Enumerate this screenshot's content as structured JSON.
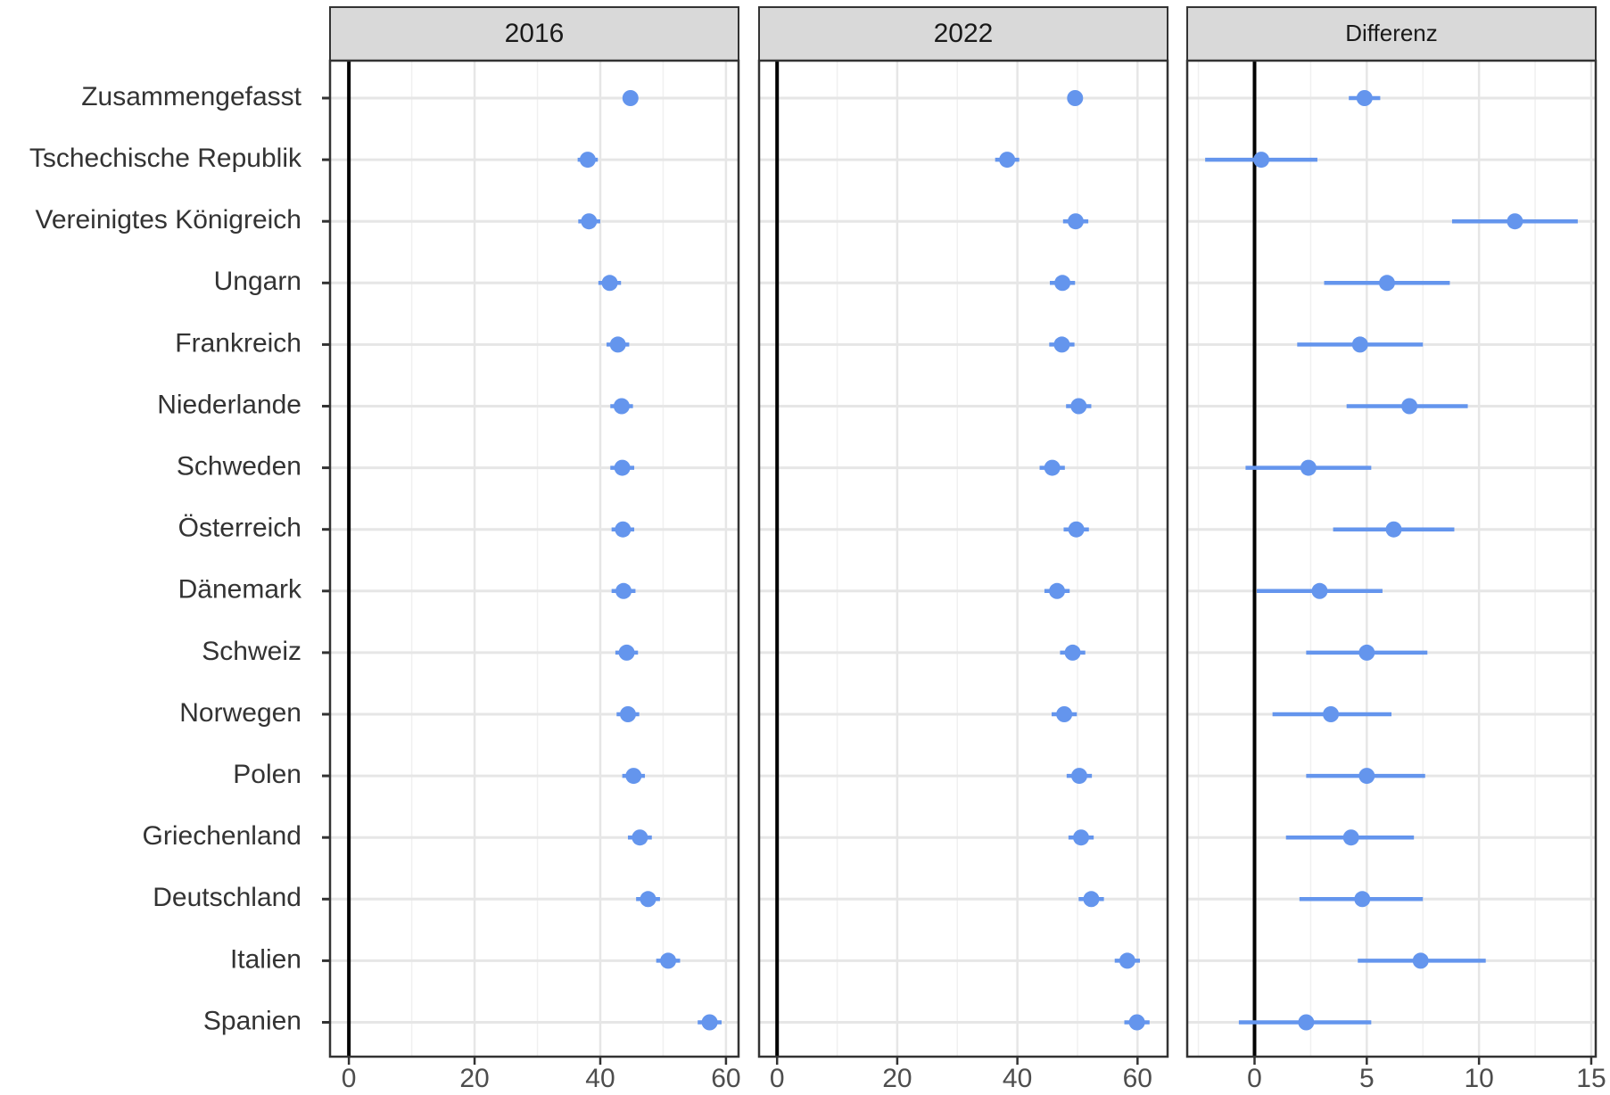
{
  "chart_data": {
    "type": "scatter",
    "categories": [
      "Zusammengefasst",
      "Tschechische Republik",
      "Vereinigtes Königreich",
      "Ungarn",
      "Frankreich",
      "Niederlande",
      "Schweden",
      "Österreich",
      "Dänemark",
      "Schweiz",
      "Norwegen",
      "Polen",
      "Griechenland",
      "Deutschland",
      "Italien",
      "Spanien"
    ],
    "point_color": "#6495ED",
    "grid": true,
    "reference_line": 0,
    "panels": [
      {
        "title": "2016",
        "xlim": [
          -3,
          62
        ],
        "ticks": [
          "0",
          "20",
          "40",
          "60"
        ],
        "tick_values": [
          0,
          20,
          40,
          60
        ],
        "minor_ticks": [
          10,
          30,
          50
        ],
        "points": [
          {
            "y": 44.8,
            "lo": 44.0,
            "hi": 45.6
          },
          {
            "y": 38.0,
            "lo": 36.4,
            "hi": 39.6
          },
          {
            "y": 38.2,
            "lo": 36.5,
            "hi": 40.0
          },
          {
            "y": 41.5,
            "lo": 39.7,
            "hi": 43.3
          },
          {
            "y": 42.8,
            "lo": 41.0,
            "hi": 44.6
          },
          {
            "y": 43.4,
            "lo": 41.6,
            "hi": 45.2
          },
          {
            "y": 43.5,
            "lo": 41.6,
            "hi": 45.4
          },
          {
            "y": 43.6,
            "lo": 41.8,
            "hi": 45.4
          },
          {
            "y": 43.7,
            "lo": 41.8,
            "hi": 45.6
          },
          {
            "y": 44.2,
            "lo": 42.4,
            "hi": 46.0
          },
          {
            "y": 44.4,
            "lo": 42.6,
            "hi": 46.2
          },
          {
            "y": 45.3,
            "lo": 43.5,
            "hi": 47.1
          },
          {
            "y": 46.3,
            "lo": 44.4,
            "hi": 48.2
          },
          {
            "y": 47.6,
            "lo": 45.7,
            "hi": 49.5
          },
          {
            "y": 50.8,
            "lo": 48.9,
            "hi": 52.7
          },
          {
            "y": 57.4,
            "lo": 55.5,
            "hi": 59.3
          }
        ]
      },
      {
        "title": "2022",
        "xlim": [
          -3,
          65
        ],
        "ticks": [
          "0",
          "20",
          "40",
          "60"
        ],
        "tick_values": [
          0,
          20,
          40,
          60
        ],
        "minor_ticks": [
          10,
          30,
          50
        ],
        "points": [
          {
            "y": 49.6,
            "lo": 48.8,
            "hi": 50.4
          },
          {
            "y": 38.3,
            "lo": 36.3,
            "hi": 40.3
          },
          {
            "y": 49.7,
            "lo": 47.6,
            "hi": 51.8
          },
          {
            "y": 47.5,
            "lo": 45.4,
            "hi": 49.6
          },
          {
            "y": 47.4,
            "lo": 45.3,
            "hi": 49.5
          },
          {
            "y": 50.2,
            "lo": 48.1,
            "hi": 52.3
          },
          {
            "y": 45.8,
            "lo": 43.7,
            "hi": 47.9
          },
          {
            "y": 49.8,
            "lo": 47.7,
            "hi": 51.9
          },
          {
            "y": 46.6,
            "lo": 44.5,
            "hi": 48.7
          },
          {
            "y": 49.2,
            "lo": 47.1,
            "hi": 51.3
          },
          {
            "y": 47.8,
            "lo": 45.7,
            "hi": 49.9
          },
          {
            "y": 50.3,
            "lo": 48.2,
            "hi": 52.4
          },
          {
            "y": 50.6,
            "lo": 48.5,
            "hi": 52.7
          },
          {
            "y": 52.3,
            "lo": 50.2,
            "hi": 54.4
          },
          {
            "y": 58.3,
            "lo": 56.2,
            "hi": 60.4
          },
          {
            "y": 59.9,
            "lo": 57.8,
            "hi": 62.0
          }
        ]
      },
      {
        "title": "Differenz",
        "xlim": [
          -3,
          15.2
        ],
        "ticks": [
          "0",
          "5",
          "10",
          "15"
        ],
        "tick_values": [
          0,
          5,
          10,
          15
        ],
        "minor_ticks": [
          -2.5,
          2.5,
          7.5,
          12.5
        ],
        "points": [
          {
            "y": 4.9,
            "lo": 4.2,
            "hi": 5.6
          },
          {
            "y": 0.3,
            "lo": -2.2,
            "hi": 2.8
          },
          {
            "y": 11.6,
            "lo": 8.8,
            "hi": 14.4
          },
          {
            "y": 5.9,
            "lo": 3.1,
            "hi": 8.7
          },
          {
            "y": 4.7,
            "lo": 1.9,
            "hi": 7.5
          },
          {
            "y": 6.9,
            "lo": 4.1,
            "hi": 9.5
          },
          {
            "y": 2.4,
            "lo": -0.4,
            "hi": 5.2
          },
          {
            "y": 6.2,
            "lo": 3.5,
            "hi": 8.9
          },
          {
            "y": 2.9,
            "lo": 0.1,
            "hi": 5.7
          },
          {
            "y": 5.0,
            "lo": 2.3,
            "hi": 7.7
          },
          {
            "y": 3.4,
            "lo": 0.8,
            "hi": 6.1
          },
          {
            "y": 5.0,
            "lo": 2.3,
            "hi": 7.6
          },
          {
            "y": 4.3,
            "lo": 1.4,
            "hi": 7.1
          },
          {
            "y": 4.8,
            "lo": 2.0,
            "hi": 7.5
          },
          {
            "y": 7.4,
            "lo": 4.6,
            "hi": 10.3
          },
          {
            "y": 2.3,
            "lo": -0.7,
            "hi": 5.2
          }
        ]
      }
    ]
  }
}
